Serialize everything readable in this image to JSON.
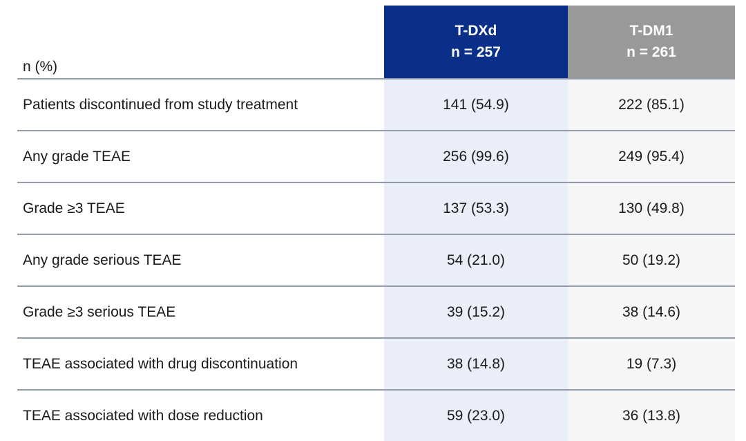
{
  "table": {
    "corner_label": "n (%)",
    "columns": [
      {
        "name": "T-DXd",
        "n_label": "n = 257",
        "header_bg": "#0a2f88",
        "body_bg": "#e9eef8"
      },
      {
        "name": "T-DM1",
        "n_label": "n = 261",
        "header_bg": "#999999",
        "body_bg": "#f6f6f6"
      }
    ],
    "rows": [
      {
        "label": "Patients discontinued from study treatment",
        "values": [
          "141 (54.9)",
          "222 (85.1)"
        ]
      },
      {
        "label": "Any grade TEAE",
        "values": [
          "256 (99.6)",
          "249 (95.4)"
        ]
      },
      {
        "label": "Grade ≥3 TEAE",
        "values": [
          "137 (53.3)",
          "130 (49.8)"
        ]
      },
      {
        "label": "Any grade serious TEAE",
        "values": [
          "54 (21.0)",
          "50 (19.2)"
        ]
      },
      {
        "label": "Grade ≥3 serious TEAE",
        "values": [
          "39 (15.2)",
          "38 (14.6)"
        ]
      },
      {
        "label": "TEAE associated with drug discontinuation",
        "values": [
          "38 (14.8)",
          "19 (7.3)"
        ]
      },
      {
        "label": "TEAE associated with dose reduction",
        "values": [
          "59 (23.0)",
          "36 (13.8)"
        ]
      }
    ]
  },
  "colors": {
    "tdxd_header": "#0a2f88",
    "tdm1_header": "#999999",
    "tdxd_column_bg": "#e9eef8",
    "tdm1_column_bg": "#f6f6f6",
    "divider": "#939aa9",
    "text": "#1a1a1a",
    "header_text": "#ffffff",
    "page_background": "#ffffff"
  }
}
